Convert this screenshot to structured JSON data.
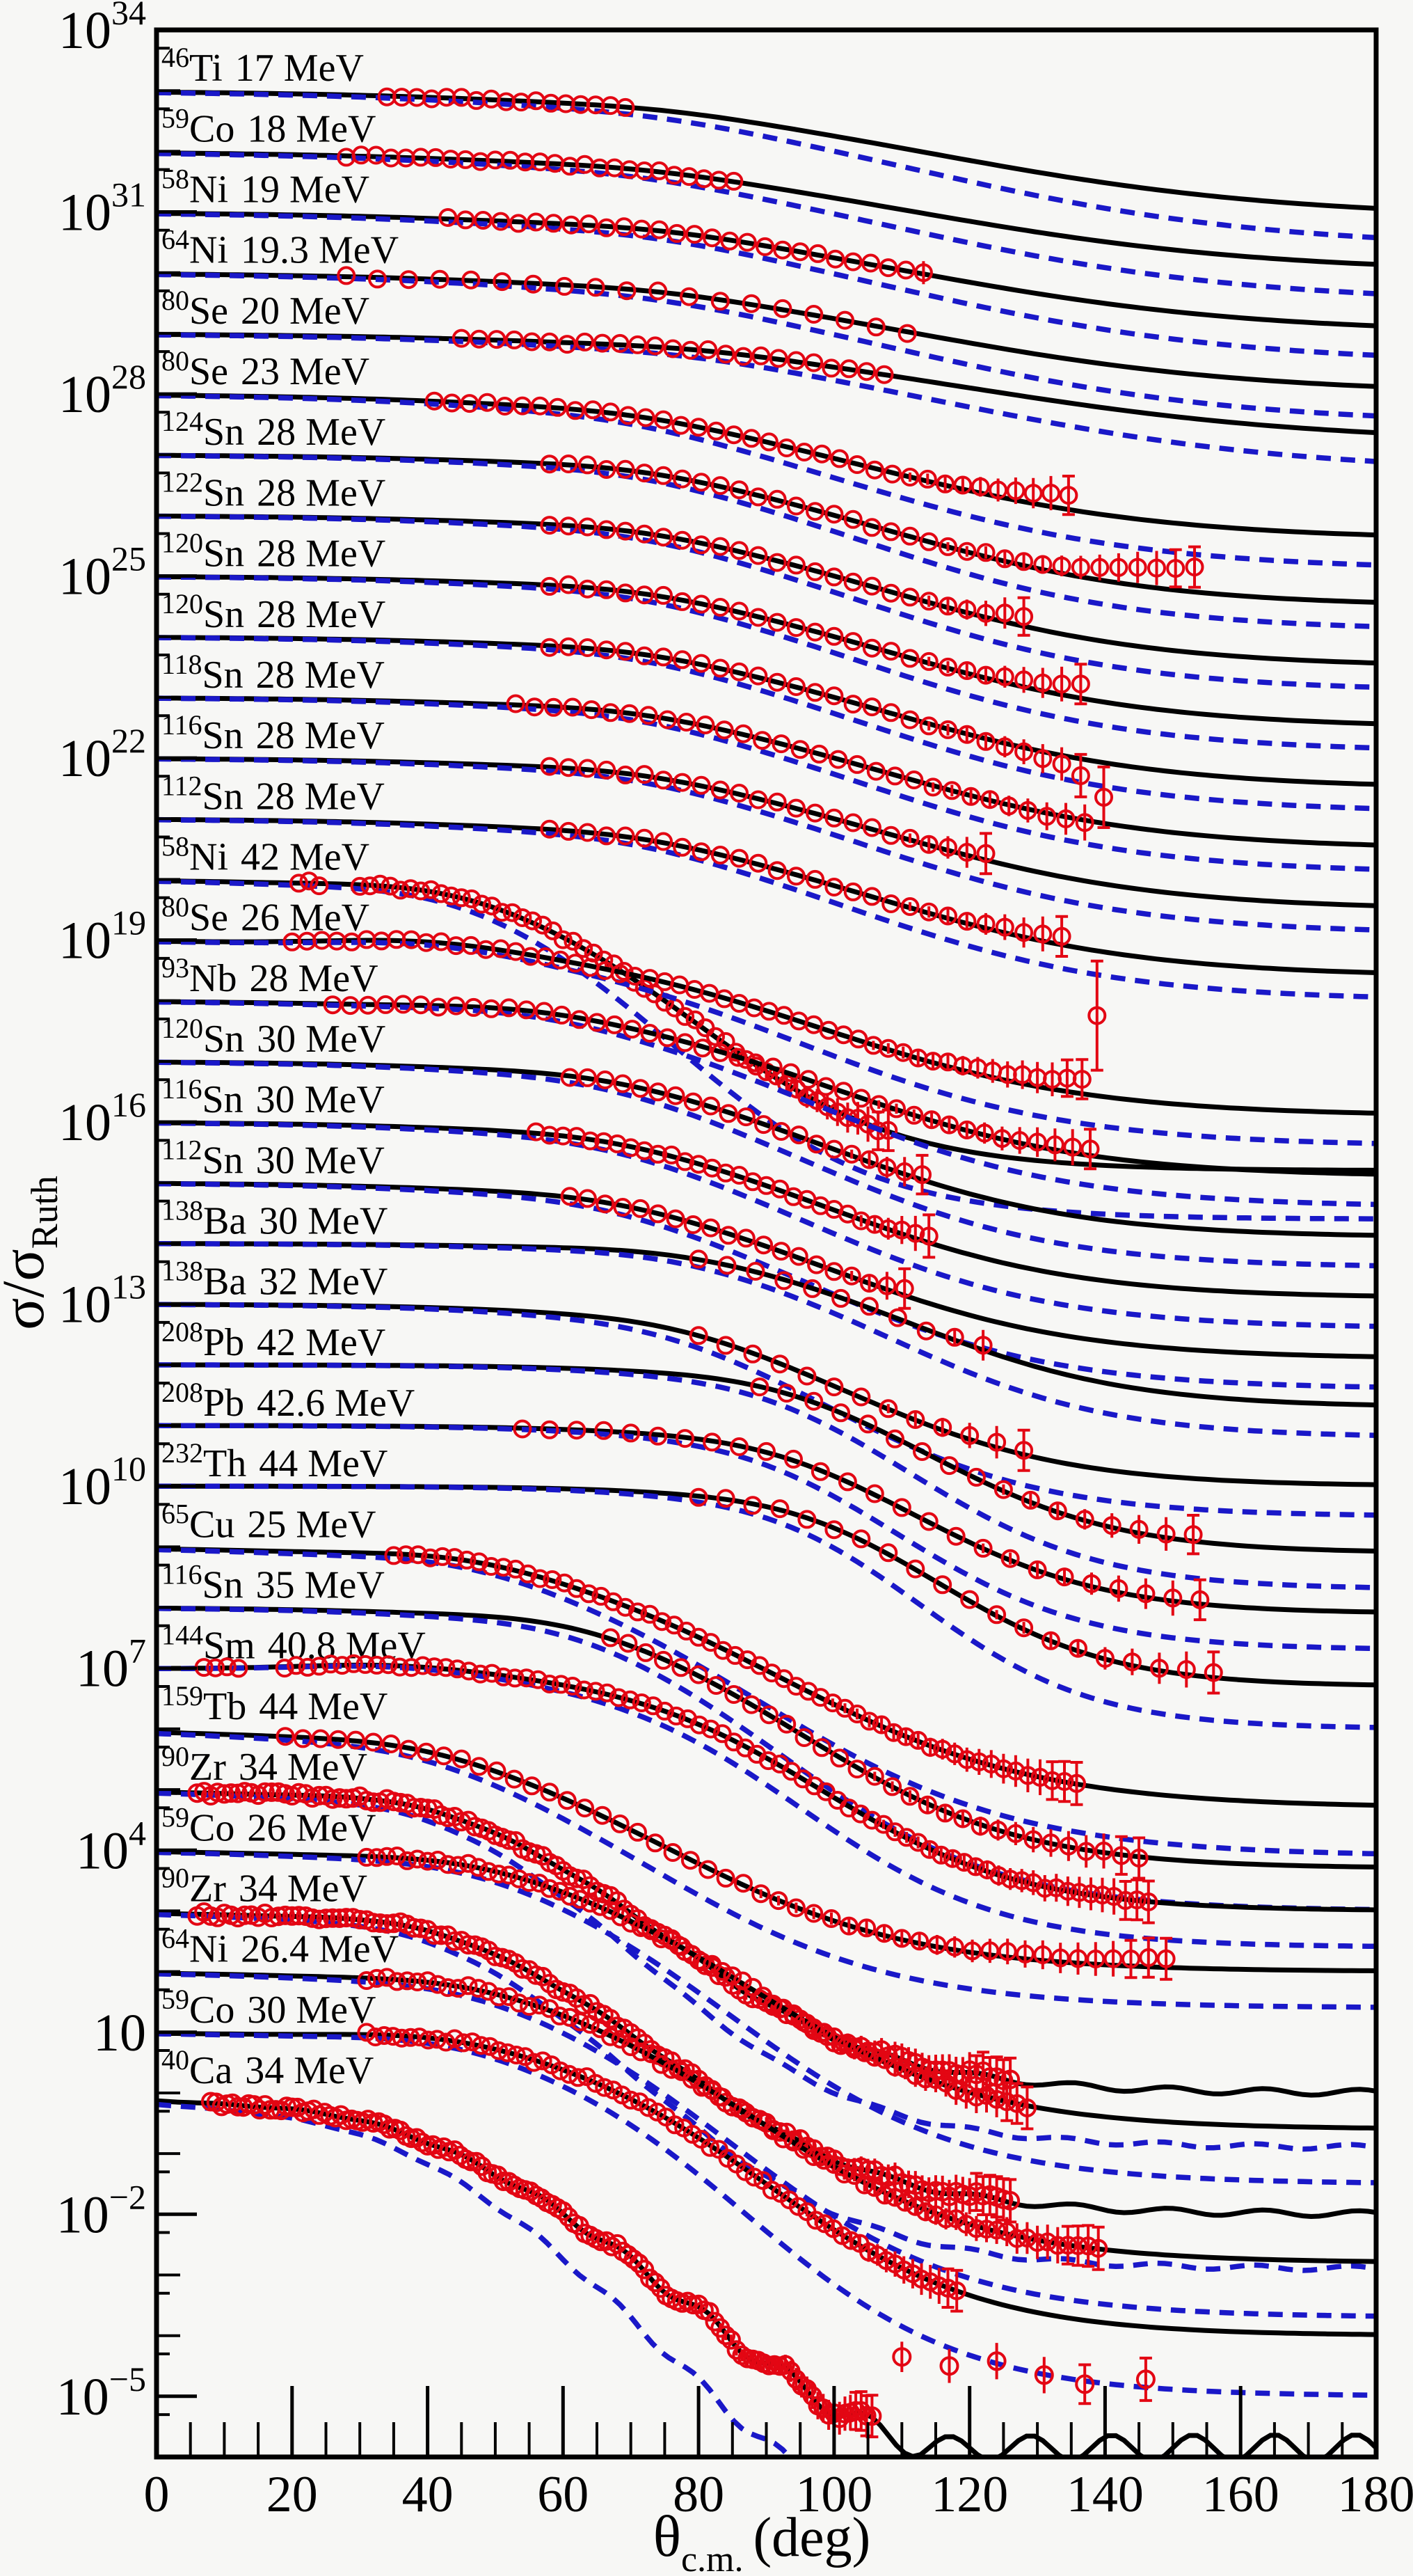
{
  "figure": {
    "description_visible_elements": "stacked log-scale elastic-scattering cross-section ratios",
    "x_axis": {
      "title_symbol": "θ",
      "title_subscript": "c.m.",
      "title_unit": "(deg)",
      "min": 0,
      "max": 180,
      "major_tick_step": 20,
      "minor_tick_step": 5,
      "tick_labels": [
        "0",
        "20",
        "40",
        "60",
        "80",
        "100",
        "120",
        "140",
        "160",
        "180"
      ]
    },
    "y_axis": {
      "title_main": "σ/σ",
      "title_subscript": "Ruth",
      "scale": "log",
      "top_exponent": 34,
      "bottom_exponent": -6,
      "labeled_exponents": [
        34,
        31,
        28,
        25,
        22,
        19,
        16,
        13,
        10,
        7,
        4,
        1,
        -2,
        -5
      ],
      "plain_label_for_exponent_1": "10"
    },
    "style": {
      "background": "#f7f7f5",
      "frame_color": "#000000",
      "solid_curve_color": "#000000",
      "dashed_curve_color": "#1a18c8",
      "data_point_color": "#e30613",
      "error_bar_color": "#e30613",
      "text_color": "#000000"
    }
  },
  "chart_data": {
    "type": "line",
    "title": "",
    "xlabel": "theta_c.m. (deg)",
    "ylabel": "sigma/sigma_Ruth",
    "x_range": [
      0,
      180
    ],
    "y_log_exponent_range": [
      -6,
      34
    ],
    "series_style": {
      "circles": "experimental data (red open circles, error bars at back angles)",
      "solid": "black solid model curve",
      "dashed": "blue dashed model curve"
    },
    "datasets": [
      {
        "m": "46",
        "el": "Ti",
        "en": "17 MeV",
        "exp": 33,
        "t0": 34,
        "t1": 70,
        "dt": 2.2,
        "fm": 115,
        "fw": 26,
        "fd": 2.1,
        "dx": 0.5,
        "bp": 0.04,
        "bc": 75,
        "tb": 0
      },
      {
        "m": "59",
        "el": "Co",
        "en": "18 MeV",
        "exp": 32,
        "t0": 28,
        "t1": 86,
        "dt": 2.2,
        "fm": 112,
        "fw": 26,
        "fd": 2.0,
        "dx": 0.5,
        "bp": 0.04,
        "bc": 72,
        "tb": 0
      },
      {
        "m": "58",
        "el": "Ni",
        "en": "19 MeV",
        "exp": 31,
        "t0": 43,
        "t1": 114,
        "dt": 2.6,
        "fm": 112,
        "fw": 25,
        "fd": 2.0,
        "dx": 0.5,
        "bp": 0.05,
        "bc": 75,
        "tb": 0.12
      },
      {
        "m": "64",
        "el": "Ni",
        "en": "19.3 MeV",
        "exp": 30,
        "t0": 28,
        "t1": 115,
        "dt": 4.6,
        "fm": 112,
        "fw": 25,
        "fd": 2.0,
        "dx": 0.5,
        "bp": 0.04,
        "bc": 75,
        "tb": 0.05
      },
      {
        "m": "80",
        "el": "Se",
        "en": "20 MeV",
        "exp": 29,
        "t0": 45,
        "t1": 109,
        "dt": 2.6,
        "fm": 120,
        "fw": 26,
        "fd": 1.8,
        "dx": 0.5,
        "bp": 0.04,
        "bc": 80,
        "tb": 0.05
      },
      {
        "m": "80",
        "el": "Se",
        "en": "23 MeV",
        "exp": 28,
        "t0": 41,
        "t1": 137,
        "dt": 2.6,
        "fm": 105,
        "fw": 22,
        "fd": 2.4,
        "dx": 0.5,
        "bp": 0.05,
        "bc": 70,
        "tb": 0.3
      },
      {
        "m": "124",
        "el": "Sn",
        "en": "28 MeV",
        "exp": 27,
        "t0": 58,
        "t1": 155,
        "dt": 2.8,
        "fm": 108,
        "fw": 20,
        "fd": 2.5,
        "dx": 0.4,
        "bp": 0.06,
        "bc": 70,
        "tb": 0.45
      },
      {
        "m": "122",
        "el": "Sn",
        "en": "28 MeV",
        "exp": 26,
        "t0": 58,
        "t1": 130,
        "dt": 2.8,
        "fm": 108,
        "fw": 20,
        "fd": 2.5,
        "dx": 0.4,
        "bp": 0.06,
        "bc": 70,
        "tb": 0.2
      },
      {
        "m": "120",
        "el": "Sn",
        "en": "28 MeV",
        "exp": 25,
        "t0": 58,
        "t1": 138,
        "dt": 2.8,
        "fm": 108,
        "fw": 20,
        "fd": 2.5,
        "dx": 0.4,
        "bp": 0.06,
        "bc": 70,
        "tb": 0.25
      },
      {
        "m": "120",
        "el": "Sn",
        "en": "28 MeV",
        "exp": 24,
        "t0": 58,
        "t1": 139,
        "dt": 2.8,
        "fm": 108,
        "fw": 20,
        "fd": 2.5,
        "dx": 0.4,
        "bp": 0.06,
        "bc": 70,
        "tb": -0.2,
        "out": {
          "rise": -0.1,
          "err": 0.35
        }
      },
      {
        "m": "118",
        "el": "Sn",
        "en": "28 MeV",
        "exp": 23,
        "t0": 53,
        "t1": 141,
        "dt": 2.8,
        "fm": 108,
        "fw": 20,
        "fd": 2.5,
        "dx": 0.4,
        "bp": 0.06,
        "bc": 70,
        "tb": -0.05,
        "out": {
          "rise": 0.5,
          "err": 0.5
        }
      },
      {
        "m": "116",
        "el": "Sn",
        "en": "28 MeV",
        "exp": 22,
        "t0": 58,
        "t1": 123,
        "dt": 2.8,
        "fm": 108,
        "fw": 20,
        "fd": 2.5,
        "dx": 0.4,
        "bp": 0.06,
        "bc": 70,
        "tb": 0.1
      },
      {
        "m": "112",
        "el": "Sn",
        "en": "28 MeV",
        "exp": 21,
        "t0": 58,
        "t1": 135,
        "dt": 2.8,
        "fm": 106,
        "fw": 20,
        "fd": 2.6,
        "dx": 0.4,
        "bp": 0.06,
        "bc": 70,
        "tb": 0.15
      },
      {
        "m": "58",
        "el": "Ni",
        "en": "42 MeV",
        "exp": 20,
        "t0": 21,
        "t1": 109,
        "dt": 1.5,
        "fm": 80,
        "fw": 15,
        "fd": 4.8,
        "dx": 0.8,
        "bp": 0.12,
        "bc": 42,
        "tb": 0,
        "gap": [
          24,
          30
        ]
      },
      {
        "m": "80",
        "el": "Se",
        "en": "26 MeV",
        "exp": 19,
        "t0": 20,
        "t1": 139,
        "dt": 2.2,
        "fm": 98,
        "fw": 20,
        "fd": 2.9,
        "dx": 0.5,
        "bp": 0.12,
        "bc": 40,
        "tb": 0.25,
        "out": {
          "rise": 1.1,
          "err": 0.9
        }
      },
      {
        "m": "93",
        "el": "Nb",
        "en": "28 MeV",
        "exp": 18,
        "t0": 26,
        "t1": 140,
        "dt": 2.6,
        "fm": 100,
        "fw": 19,
        "fd": 2.9,
        "dx": 0.5,
        "bp": 0.08,
        "bc": 55,
        "tb": 0.1
      },
      {
        "m": "120",
        "el": "Sn",
        "en": "30 MeV",
        "exp": 17,
        "t0": 61,
        "t1": 114,
        "dt": 2.6,
        "fm": 100,
        "fw": 18,
        "fd": 2.9,
        "dx": 0.5,
        "bp": 0.06,
        "bc": 65,
        "tb": 0.1
      },
      {
        "m": "116",
        "el": "Sn",
        "en": "30 MeV",
        "exp": 16,
        "t0": 56,
        "t1": 114,
        "dt": 2.0,
        "fm": 100,
        "fw": 18,
        "fd": 2.9,
        "dx": 0.5,
        "bp": 0.06,
        "bc": 65,
        "tb": 0.1
      },
      {
        "m": "112",
        "el": "Sn",
        "en": "30 MeV",
        "exp": 15,
        "t0": 61,
        "t1": 111,
        "dt": 2.6,
        "fm": 100,
        "fw": 18,
        "fd": 2.9,
        "dx": 0.5,
        "bp": 0.06,
        "bc": 65,
        "tb": 0.1
      },
      {
        "m": "138",
        "el": "Ba",
        "en": "30 MeV",
        "exp": 14,
        "t0": 80,
        "t1": 125,
        "dt": 4.2,
        "fm": 112,
        "fw": 16,
        "fd": 2.7,
        "dx": 0.5,
        "bp": 0.06,
        "bc": 75,
        "tb": 0.1
      },
      {
        "m": "138",
        "el": "Ba",
        "en": "32 MeV",
        "exp": 13,
        "t0": 80,
        "t1": 129,
        "dt": 4.0,
        "fm": 103,
        "fw": 16,
        "fd": 3.0,
        "dx": 0.5,
        "bp": 0.06,
        "bc": 75,
        "tb": 0.1
      },
      {
        "m": "208",
        "el": "Pb",
        "en": "42 MeV",
        "exp": 12,
        "t0": 89,
        "t1": 156,
        "dt": 4.0,
        "fm": 115,
        "fw": 14,
        "fd": 3.1,
        "dx": 0.6,
        "bp": 0.06,
        "bc": 90,
        "tb": 0.1
      },
      {
        "m": "208",
        "el": "Pb",
        "en": "42.6 MeV",
        "exp": 11,
        "t0": 54,
        "t1": 156,
        "dt": 4.0,
        "fm": 113,
        "fw": 14,
        "fd": 3.1,
        "dx": 0.6,
        "bp": 0.06,
        "bc": 90,
        "tb": 0.1
      },
      {
        "m": "232",
        "el": "Th",
        "en": "44 MeV",
        "exp": 10,
        "t0": 80,
        "t1": 157,
        "dt": 4.0,
        "fm": 116,
        "fw": 13,
        "fd": 3.3,
        "dx": 0.7,
        "bp": 0.06,
        "bc": 95,
        "tb": 0.1
      },
      {
        "m": "65",
        "el": "Cu",
        "en": "25 MeV",
        "exp": 9,
        "t0": 35,
        "t1": 136,
        "dt": 1.8,
        "fm": 92,
        "fw": 19,
        "fd": 4.3,
        "dx": 0.8,
        "bp": 0.12,
        "bc": 45,
        "tb": 0
      },
      {
        "m": "116",
        "el": "Sn",
        "en": "35 MeV",
        "exp": 8,
        "t0": 67,
        "t1": 147,
        "dt": 2.6,
        "fm": 96,
        "fw": 16,
        "fd": 4.3,
        "dx": 0.7,
        "bp": 0.1,
        "bc": 60,
        "tb": 0
      },
      {
        "m": "144",
        "el": "Sm",
        "en": "40.8 MeV",
        "exp": 7,
        "t0": 7,
        "t1": 147,
        "dt": 1.7,
        "fm": 98,
        "fw": 15,
        "fd": 4.0,
        "dx": 0.6,
        "bp": 0.1,
        "bc": 35,
        "tb": 0,
        "gap": [
          13.5,
          17.5
        ]
      },
      {
        "m": "159",
        "el": "Tb",
        "en": "44 MeV",
        "exp": 6,
        "t0": 19,
        "t1": 151,
        "dt": 2.6,
        "fm": 76,
        "fw": 18,
        "fd": 4.0,
        "dx": 0.6,
        "bp": 0.1,
        "bc": 38,
        "tb": 0.15
      },
      {
        "m": "90",
        "el": "Zr",
        "en": "34 MeV",
        "exp": 5,
        "t0": 6,
        "t1": 126,
        "dt": 1.0,
        "fm": 76,
        "fw": 16,
        "fd": 5.0,
        "dx": 0.9,
        "bp": 0.15,
        "bc": 38,
        "tb": 0,
        "wa": 0.05,
        "wp": 14
      },
      {
        "m": "59",
        "el": "Co",
        "en": "26 MeV",
        "exp": 4,
        "t0": 31,
        "t1": 129,
        "dt": 1.5,
        "fm": 88,
        "fw": 17,
        "fd": 4.6,
        "dx": 0.9,
        "bp": 0.1,
        "bc": 45,
        "tb": 0
      },
      {
        "m": "90",
        "el": "Zr",
        "en": "34 MeV",
        "exp": 3,
        "t0": 6,
        "t1": 126,
        "dt": 1.0,
        "fm": 76,
        "fw": 16,
        "fd": 5.0,
        "dx": 0.9,
        "bp": 0.15,
        "bc": 38,
        "tb": 0,
        "wa": 0.05,
        "wp": 14
      },
      {
        "m": "64",
        "el": "Ni",
        "en": "26.4 MeV",
        "exp": 2,
        "t0": 31,
        "t1": 139,
        "dt": 1.5,
        "fm": 88,
        "fw": 17,
        "fd": 4.8,
        "dx": 0.9,
        "bp": 0.1,
        "bc": 45,
        "tb": 0
      },
      {
        "m": "59",
        "el": "Co",
        "en": "30 MeV",
        "exp": 1,
        "t0": 31,
        "t1": 119,
        "dt": 1.3,
        "fm": 90,
        "fw": 16,
        "fd": 5.0,
        "dx": 1.0,
        "bp": 0.12,
        "bc": 42,
        "tb": 0
      },
      {
        "m": "40",
        "el": "Ca",
        "en": "34 MeV",
        "exp": 0,
        "t0": 8,
        "t1": 106,
        "dt": 0.8,
        "fm": 78,
        "fw": 20,
        "fd": 6.9,
        "dx": 1.6,
        "bp": 0.12,
        "bc": 30,
        "tb": 0,
        "wa": 0.22,
        "wp": 12,
        "xp": [
          [
            110,
            -4.35,
            0.25
          ],
          [
            117,
            -4.5,
            0.28
          ],
          [
            124,
            -4.42,
            0.3
          ],
          [
            131,
            -4.65,
            0.3
          ],
          [
            137,
            -4.8,
            0.32
          ],
          [
            146,
            -4.72,
            0.35
          ]
        ]
      }
    ]
  }
}
